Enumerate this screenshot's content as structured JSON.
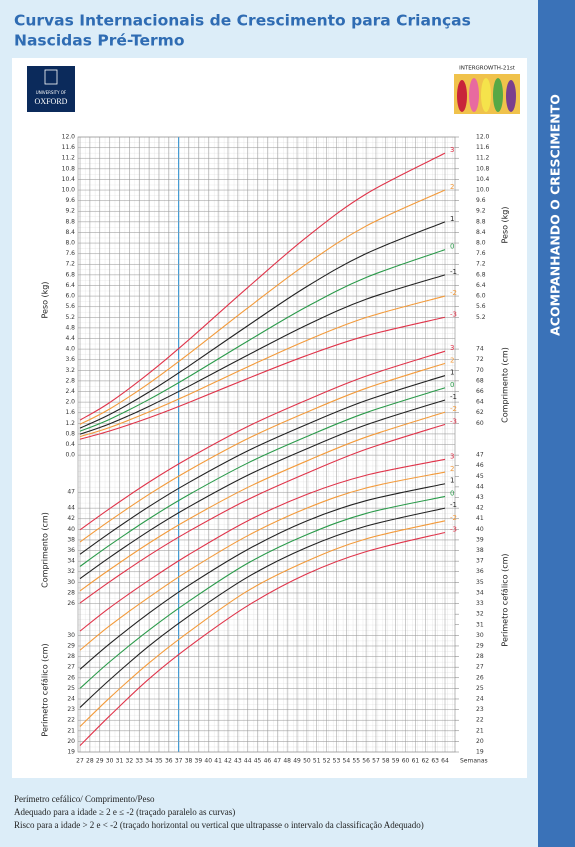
{
  "header": {
    "title": "Curvas Internacionais de Crescimento para Crianças",
    "subtitle": "Nascidas Pré-Termo"
  },
  "side_banner": "ACOMPANHANDO O CRESCIMENTO",
  "logos": {
    "oxford": [
      "UNIVERSITY OF",
      "OXFORD"
    ],
    "intergrowth": "INTERGROWTH-21st"
  },
  "chart_data": {
    "type": "line",
    "x": [
      27,
      30,
      34,
      38,
      44,
      50,
      56,
      64
    ],
    "xlim": [
      27,
      64
    ],
    "xticks": [
      27,
      28,
      29,
      30,
      31,
      32,
      33,
      34,
      35,
      36,
      37,
      38,
      39,
      40,
      41,
      42,
      43,
      44,
      45,
      46,
      47,
      48,
      49,
      50,
      51,
      52,
      53,
      54,
      55,
      56,
      57,
      58,
      59,
      60,
      61,
      62,
      63,
      64
    ],
    "xlabel": "Semanas",
    "reference_x": 37,
    "reference_color": "#2a8fd0",
    "grid": true,
    "measures": [
      {
        "ylabel": "Peso (kg)",
        "ylabel_right": "Peso (kg)",
        "ylim": [
          -11.2,
          12
        ],
        "yticks": [
          {
            "value": 0,
            "label": "0.0"
          },
          0.4,
          0.8,
          1.2,
          1.6,
          {
            "value": 2,
            "label": "2.0"
          },
          2.4,
          2.8,
          3.2,
          3.6,
          {
            "value": 4,
            "label": "4.0"
          },
          4.4,
          4.8,
          5.2,
          5.6,
          {
            "value": 6,
            "label": "6.0"
          },
          6.4,
          6.8,
          7.2,
          7.6,
          {
            "value": 8,
            "label": "8.0"
          },
          8.4,
          8.8,
          9.2,
          9.6,
          {
            "value": 10,
            "label": "10.0"
          },
          10.4,
          10.8,
          11.2,
          11.6,
          {
            "value": 12,
            "label": "12.0"
          }
        ],
        "yticks_right": [
          5.2,
          5.6,
          {
            "value": 6,
            "label": "6.0"
          },
          6.4,
          6.8,
          7.2,
          7.6,
          {
            "value": 8,
            "label": "8.0"
          },
          8.4,
          8.8,
          9.2,
          9.6,
          {
            "value": 10,
            "label": "10.0"
          },
          10.4,
          10.8,
          11.2,
          11.6,
          {
            "value": 12,
            "label": "12.0"
          }
        ],
        "series": [
          {
            "name": "3",
            "color": "#e0344a",
            "values": [
              1.32,
              1.98,
              3.09,
              4.34,
              6.32,
              8.23,
              9.85,
              11.39
            ]
          },
          {
            "name": "2",
            "color": "#f39a3a",
            "values": [
              1.16,
              1.74,
              2.71,
              3.81,
              5.55,
              7.22,
              8.64,
              10.0
            ]
          },
          {
            "name": "1",
            "color": "#222222",
            "values": [
              1.02,
              1.53,
              2.38,
              3.35,
              4.88,
              6.36,
              7.6,
              8.8
            ]
          },
          {
            "name": "0",
            "color": "#2a9a4a",
            "values": [
              0.9,
              1.35,
              2.1,
              2.95,
              4.3,
              5.6,
              6.7,
              7.75
            ]
          },
          {
            "name": "-1",
            "color": "#222222",
            "values": [
              0.79,
              1.18,
              1.84,
              2.59,
              3.77,
              4.91,
              5.88,
              6.8
            ]
          },
          {
            "name": "-2",
            "color": "#f39a3a",
            "values": [
              0.7,
              1.04,
              1.63,
              2.28,
              3.33,
              4.33,
              5.19,
              6.0
            ]
          },
          {
            "name": "-3",
            "color": "#e0344a",
            "values": [
              0.6,
              0.91,
              1.41,
              1.98,
              2.89,
              3.76,
              4.5,
              5.2
            ]
          }
        ]
      },
      {
        "ylabel": "Comprimento (cm)",
        "ylabel_right": "Comprimento (cm)",
        "ylim": [
          -2,
          114
        ],
        "yticks": [
          26,
          28,
          30,
          32,
          34,
          36,
          38,
          40,
          42,
          44,
          47
        ],
        "yticks_right": [
          60,
          62,
          64,
          66,
          68,
          70,
          72,
          74
        ],
        "series": [
          {
            "name": "3",
            "color": "#e0344a",
            "values": [
              39.9,
              43.9,
              48.9,
              53.4,
              59.4,
              64.4,
              68.9,
              73.6
            ]
          },
          {
            "name": "2",
            "color": "#f39a3a",
            "values": [
              37.6,
              41.6,
              46.6,
              51.1,
              57.1,
              62.1,
              66.6,
              71.3
            ]
          },
          {
            "name": "1",
            "color": "#222222",
            "values": [
              35.3,
              39.3,
              44.3,
              48.8,
              54.8,
              59.8,
              64.3,
              69.0
            ]
          },
          {
            "name": "0",
            "color": "#2a9a4a",
            "values": [
              33,
              37,
              42,
              46.5,
              52.5,
              57.5,
              62,
              66.7
            ]
          },
          {
            "name": "-1",
            "color": "#222222",
            "values": [
              30.7,
              34.7,
              39.7,
              44.2,
              50.2,
              55.2,
              59.7,
              64.4
            ]
          },
          {
            "name": "-2",
            "color": "#f39a3a",
            "values": [
              28.4,
              32.4,
              37.4,
              41.9,
              47.9,
              52.9,
              57.4,
              62.1
            ]
          },
          {
            "name": "-3",
            "color": "#e0344a",
            "values": [
              26.1,
              30.1,
              35.1,
              39.6,
              45.6,
              50.6,
              55.1,
              59.8
            ]
          }
        ]
      },
      {
        "ylabel": "Perímetro cefálico (cm)",
        "ylabel_right": "Perímetro cefálico (cm)",
        "ylim": [
          19,
          77
        ],
        "yticks": [
          19,
          20,
          21,
          22,
          23,
          24,
          25,
          26,
          27,
          28,
          29,
          30
        ],
        "yticks_right": [
          19,
          20,
          21,
          22,
          23,
          24,
          25,
          26,
          27,
          28,
          29,
          30,
          31,
          32,
          33,
          34,
          35,
          36,
          37,
          38,
          39,
          40,
          41,
          42,
          43,
          44,
          45,
          46,
          47
        ],
        "series": [
          {
            "name": "3",
            "color": "#e0344a",
            "values": [
              30.4,
              32.6,
              35.2,
              37.6,
              40.8,
              43.3,
              45.1,
              46.6
            ]
          },
          {
            "name": "2",
            "color": "#f39a3a",
            "values": [
              28.6,
              30.9,
              33.6,
              36.1,
              39.4,
              42.0,
              43.9,
              45.4
            ]
          },
          {
            "name": "1",
            "color": "#222222",
            "values": [
              26.8,
              29.2,
              32.1,
              34.7,
              38.1,
              40.8,
              42.7,
              44.3
            ]
          },
          {
            "name": "0",
            "color": "#2a9a4a",
            "values": [
              25,
              27.5,
              30.5,
              33.2,
              36.8,
              39.5,
              41.5,
              43.1
            ]
          },
          {
            "name": "-1",
            "color": "#222222",
            "values": [
              23.2,
              25.8,
              29.0,
              31.8,
              35.5,
              38.3,
              40.3,
              42.0
            ]
          },
          {
            "name": "-2",
            "color": "#f39a3a",
            "values": [
              21.4,
              24.1,
              27.4,
              30.3,
              34.2,
              37.0,
              39.1,
              40.8
            ]
          },
          {
            "name": "-3",
            "color": "#e0344a",
            "values": [
              19.6,
              22.4,
              25.9,
              28.9,
              32.8,
              35.8,
              37.9,
              39.7
            ]
          }
        ]
      }
    ]
  },
  "footer": [
    "Perímetro cefálico/ Comprimento/Peso",
    "Adequado para a idade ≥ 2 e ≤ -2 (traçado paralelo as curvas)",
    "Risco para a idade > 2 e < -2 (traçado horizontal ou vertical que ultrapasse o intervalo da classificação Adequado)"
  ]
}
